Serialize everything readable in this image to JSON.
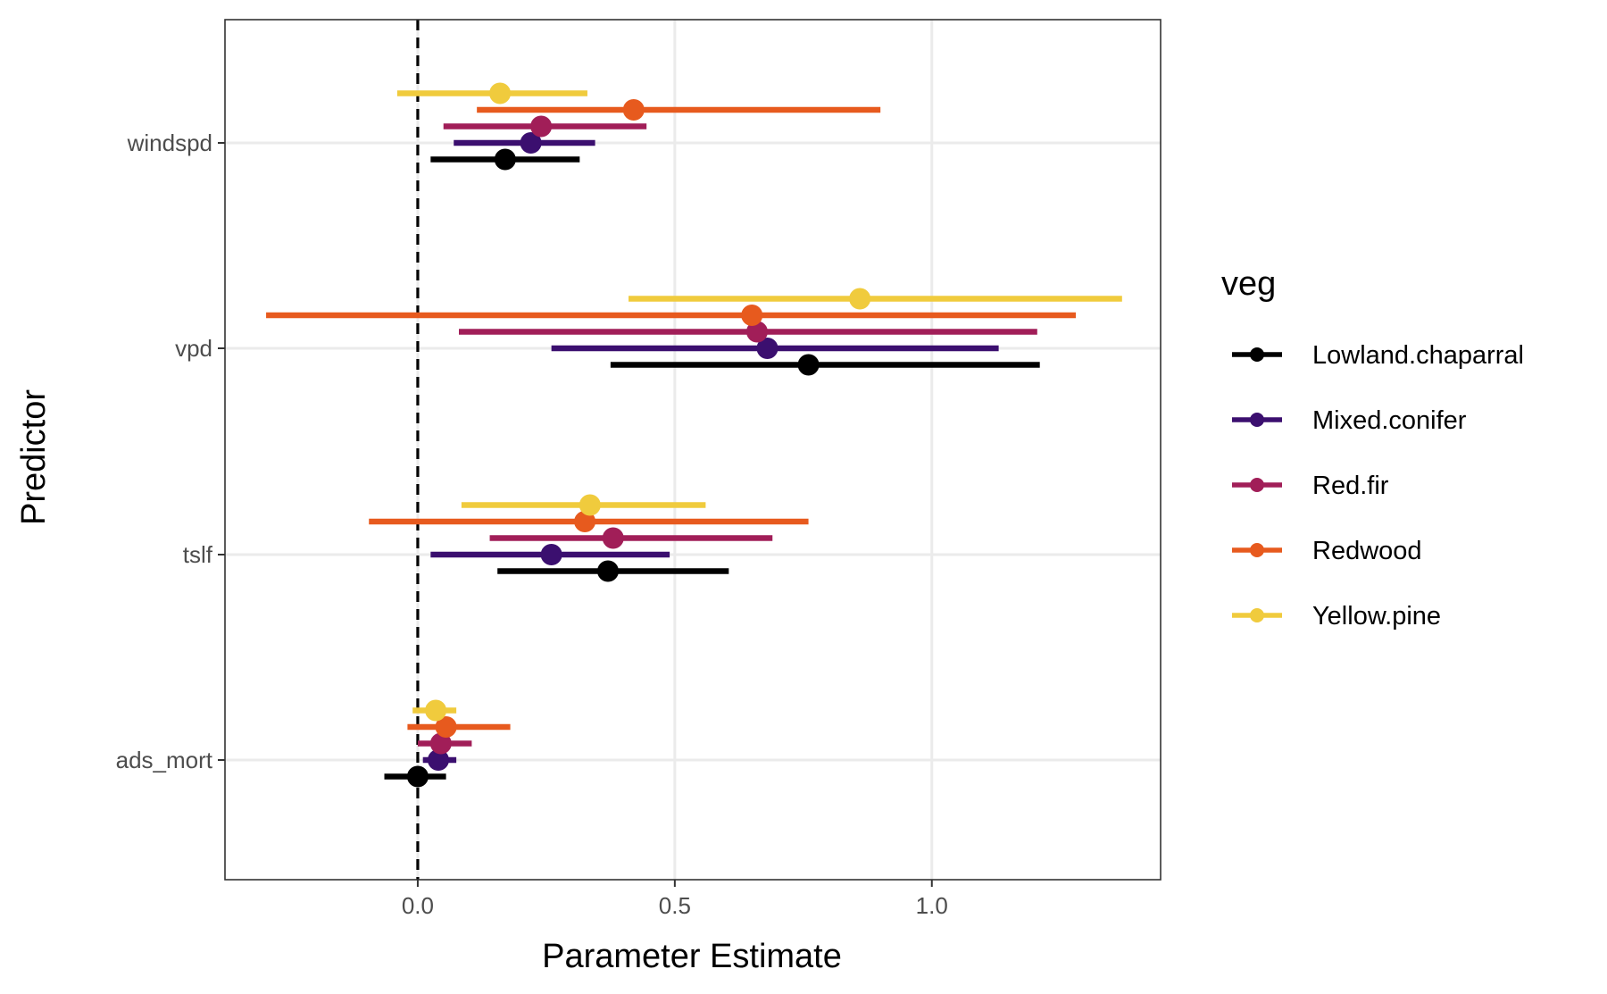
{
  "chart_data": {
    "type": "forest",
    "xlabel": "Parameter Estimate",
    "ylabel": "Predictor",
    "xlim": [
      -0.375,
      1.445
    ],
    "x_ticks": [
      0.0,
      0.5,
      1.0
    ],
    "x_tick_labels": [
      "0.0",
      "0.5",
      "1.0"
    ],
    "reference_line_x": 0,
    "categories": [
      "windspd",
      "vpd",
      "tslf",
      "ads_mort"
    ],
    "grid": true,
    "legend": {
      "title": "veg",
      "position": "right"
    },
    "series": [
      {
        "name": "Lowland.chaparral",
        "color": "#000000",
        "points": [
          {
            "predictor": "windspd",
            "estimate": 0.17,
            "lower": 0.025,
            "upper": 0.315
          },
          {
            "predictor": "vpd",
            "estimate": 0.76,
            "lower": 0.375,
            "upper": 1.21
          },
          {
            "predictor": "tslf",
            "estimate": 0.37,
            "lower": 0.155,
            "upper": 0.605
          },
          {
            "predictor": "ads_mort",
            "estimate": 0.0,
            "lower": -0.065,
            "upper": 0.055
          }
        ]
      },
      {
        "name": "Mixed.conifer",
        "color": "#3b0f6f",
        "points": [
          {
            "predictor": "windspd",
            "estimate": 0.22,
            "lower": 0.07,
            "upper": 0.345
          },
          {
            "predictor": "vpd",
            "estimate": 0.68,
            "lower": 0.26,
            "upper": 1.13
          },
          {
            "predictor": "tslf",
            "estimate": 0.26,
            "lower": 0.025,
            "upper": 0.49
          },
          {
            "predictor": "ads_mort",
            "estimate": 0.04,
            "lower": 0.01,
            "upper": 0.075
          }
        ]
      },
      {
        "name": "Red.fir",
        "color": "#a11e58",
        "points": [
          {
            "predictor": "windspd",
            "estimate": 0.24,
            "lower": 0.05,
            "upper": 0.445
          },
          {
            "predictor": "vpd",
            "estimate": 0.66,
            "lower": 0.08,
            "upper": 1.205
          },
          {
            "predictor": "tslf",
            "estimate": 0.38,
            "lower": 0.14,
            "upper": 0.69
          },
          {
            "predictor": "ads_mort",
            "estimate": 0.045,
            "lower": 0.0,
            "upper": 0.105
          }
        ]
      },
      {
        "name": "Redwood",
        "color": "#e75a1e",
        "points": [
          {
            "predictor": "windspd",
            "estimate": 0.42,
            "lower": 0.115,
            "upper": 0.9
          },
          {
            "predictor": "vpd",
            "estimate": 0.65,
            "lower": -0.295,
            "upper": 1.28
          },
          {
            "predictor": "tslf",
            "estimate": 0.325,
            "lower": -0.095,
            "upper": 0.76
          },
          {
            "predictor": "ads_mort",
            "estimate": 0.055,
            "lower": -0.02,
            "upper": 0.18
          }
        ]
      },
      {
        "name": "Yellow.pine",
        "color": "#f0cb3d",
        "points": [
          {
            "predictor": "windspd",
            "estimate": 0.16,
            "lower": -0.04,
            "upper": 0.33
          },
          {
            "predictor": "vpd",
            "estimate": 0.86,
            "lower": 0.41,
            "upper": 1.37
          },
          {
            "predictor": "tslf",
            "estimate": 0.335,
            "lower": 0.085,
            "upper": 0.56
          },
          {
            "predictor": "ads_mort",
            "estimate": 0.035,
            "lower": -0.01,
            "upper": 0.075
          }
        ]
      }
    ]
  }
}
